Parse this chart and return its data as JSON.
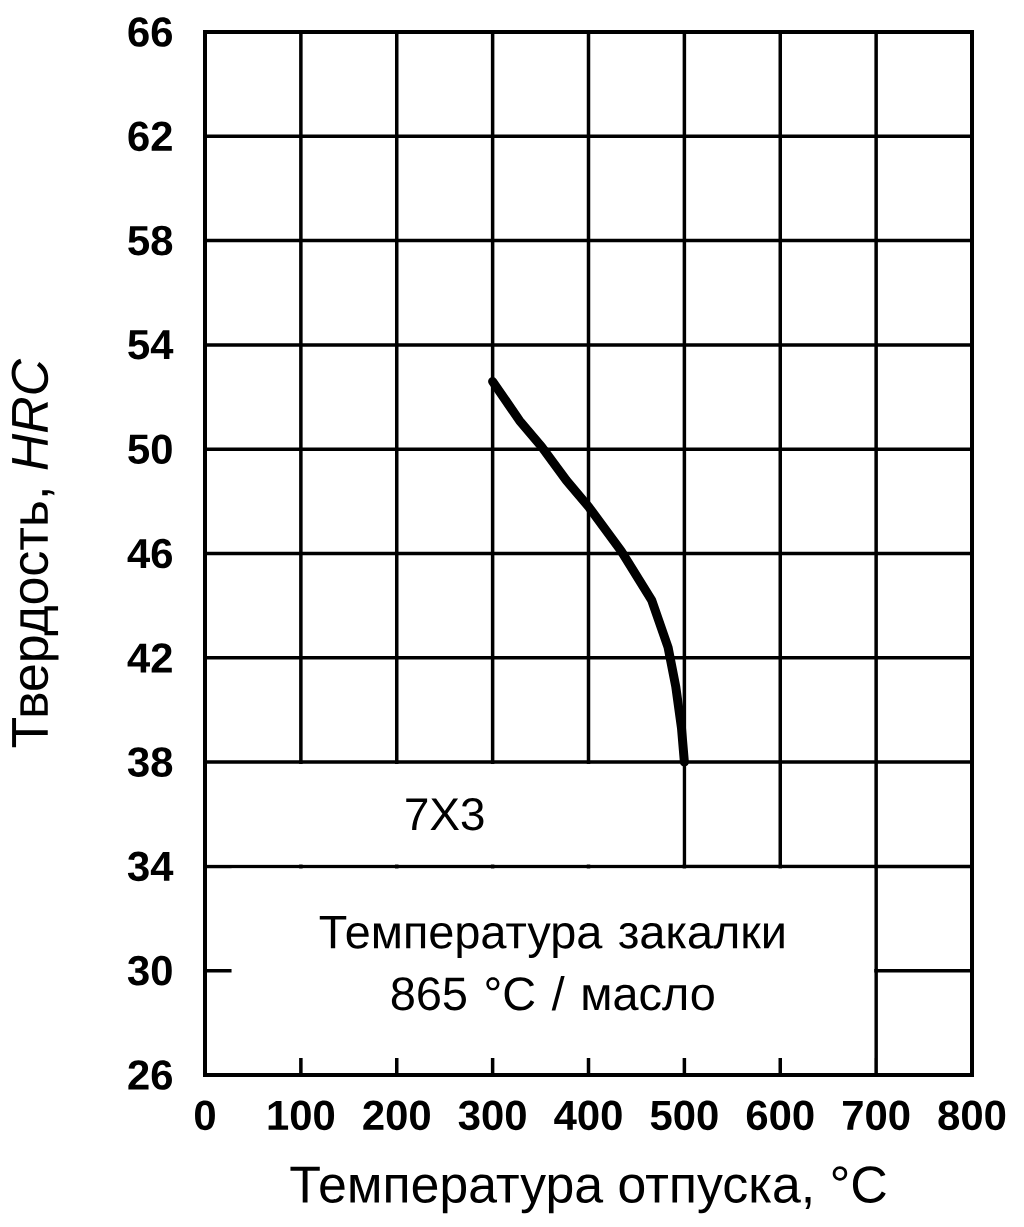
{
  "chart_data": {
    "type": "line",
    "xlabel": "Температура отпуска, °C",
    "ylabel": "Твердость, *HRC*",
    "x": [
      300,
      328,
      351,
      377,
      400,
      434,
      466,
      483,
      491,
      497,
      500
    ],
    "values": [
      52.6,
      51.1,
      50.1,
      48.8,
      47.8,
      46.1,
      44.2,
      42.4,
      40.9,
      39.3,
      38
    ],
    "color": "#000000",
    "xlim": [
      0,
      800
    ],
    "ylim": [
      26,
      66
    ],
    "xticks": [
      0,
      100,
      200,
      300,
      400,
      500,
      600,
      700,
      800
    ],
    "yticks": [
      26,
      30,
      34,
      38,
      42,
      46,
      50,
      54,
      58,
      62,
      66
    ],
    "grid": true,
    "annotations": [
      "7Х3",
      "Температура закалки 865 °C / масло"
    ]
  }
}
